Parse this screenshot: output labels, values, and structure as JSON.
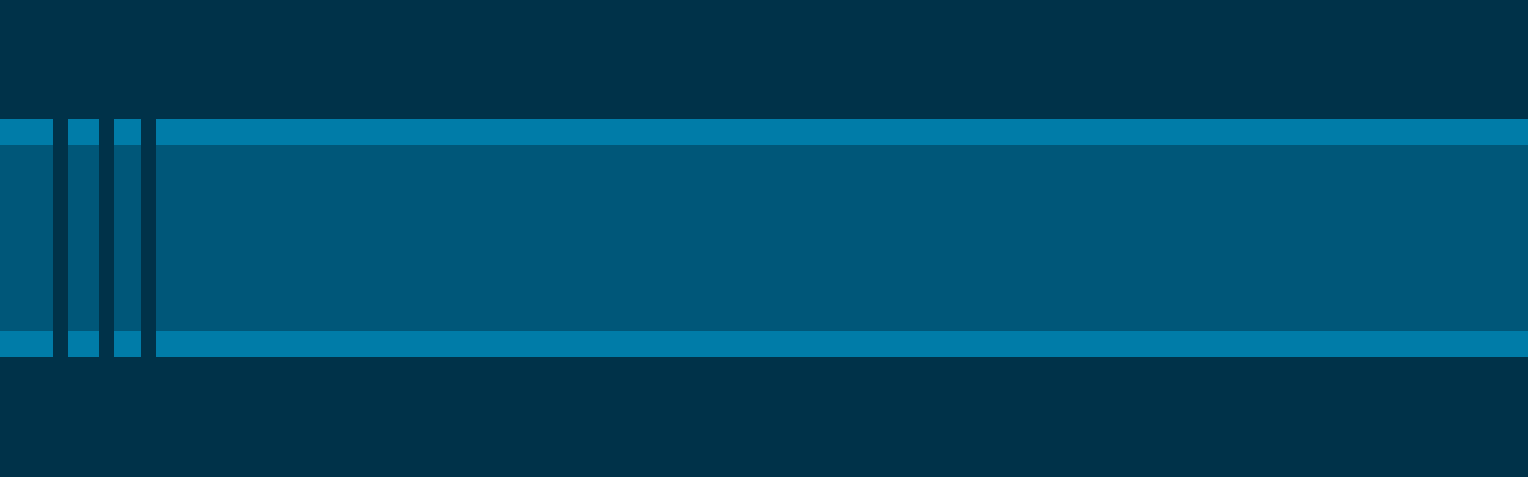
{
  "colors": {
    "background": "#003249",
    "stripe": "#007ca8",
    "band": "#005779",
    "divider": "#003249"
  }
}
